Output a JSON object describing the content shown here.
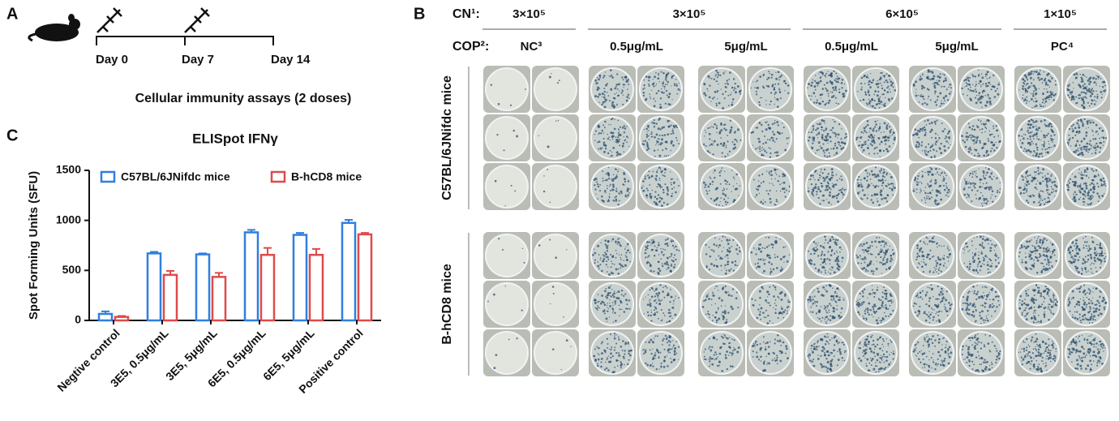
{
  "panel_labels": [
    "A",
    "B",
    "C"
  ],
  "timeline": {
    "days": [
      "Day 0",
      "Day 7",
      "Day 14"
    ],
    "caption": "Cellular immunity assays (2 doses)"
  },
  "plate": {
    "cn_label": "CN¹:",
    "cn": [
      "3×10⁵",
      "3×10⁵",
      "6×10⁵",
      "1×10⁵"
    ],
    "cop_label": "COP²:",
    "cop": [
      "NC³",
      "0.5μg/mL",
      "5μg/mL",
      "0.5μg/mL",
      "5μg/mL",
      "PC⁴"
    ],
    "groups": [
      "C57BL/6JNifdc mice",
      "B-hCD8 mice"
    ]
  },
  "chart_data": {
    "type": "bar",
    "title": "ELISpot IFNγ",
    "y_label": "Spot Forming Units (SFU)",
    "categories": [
      "Negtive control",
      "3E5, 0.5μg/mL",
      "3E5, 5μg/mL",
      "6E5, 0.5μg/mL",
      "6E5, 5μg/mL",
      "Positive control"
    ],
    "series": [
      {
        "name": "C57BL/6JNifdc mice",
        "color": "#2f7fe0",
        "values": [
          65,
          670,
          660,
          880,
          855,
          975
        ],
        "errors": [
          25,
          15,
          10,
          25,
          20,
          30
        ]
      },
      {
        "name": "B-hCD8 mice",
        "color": "#e04a4a",
        "values": [
          35,
          455,
          435,
          655,
          655,
          860
        ],
        "errors": [
          10,
          40,
          40,
          70,
          60,
          15
        ]
      }
    ],
    "ylim": [
      0,
      1500
    ],
    "yticks": [
      0,
      500,
      1000,
      1500
    ],
    "legend": "top"
  }
}
